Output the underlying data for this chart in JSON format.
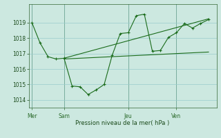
{
  "background_color": "#cce8e0",
  "grid_color": "#99cccc",
  "line_color": "#1a6b1a",
  "title": "Pression niveau de la mer( hPa )",
  "ylim": [
    1013.5,
    1020.2
  ],
  "yticks": [
    1014,
    1015,
    1016,
    1017,
    1018,
    1019
  ],
  "day_labels": [
    "Mer",
    "Sam",
    "Jeu",
    "Ven"
  ],
  "day_positions": [
    0,
    2,
    6,
    9
  ],
  "xlim": [
    -0.2,
    11.5
  ],
  "series1_x": [
    0,
    0.5,
    1.0,
    1.5,
    2.0,
    2.5,
    3.0,
    3.5,
    4.0,
    4.5,
    5.0,
    5.5,
    6.0,
    6.5,
    7.0,
    7.5,
    8.0,
    8.5,
    9.0,
    9.5,
    10.0,
    10.5,
    11.0
  ],
  "series1_y": [
    1019.0,
    1017.7,
    1016.8,
    1016.65,
    1016.7,
    1014.9,
    1014.85,
    1014.35,
    1014.65,
    1015.0,
    1016.9,
    1018.3,
    1018.35,
    1019.45,
    1019.55,
    1017.15,
    1017.2,
    1018.05,
    1018.35,
    1018.95,
    1018.65,
    1018.95,
    1019.2
  ],
  "trend1_x": [
    2.0,
    11.0
  ],
  "trend1_y": [
    1016.65,
    1017.1
  ],
  "trend2_x": [
    2.0,
    11.0
  ],
  "trend2_y": [
    1016.7,
    1019.25
  ]
}
